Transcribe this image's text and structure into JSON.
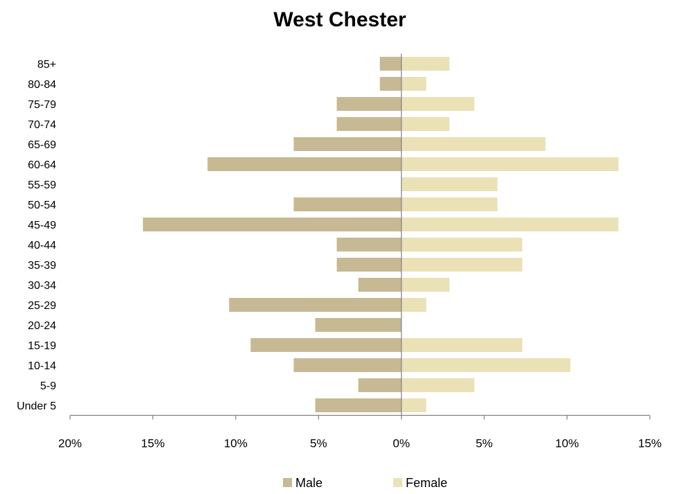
{
  "chart_data": {
    "type": "bar",
    "orientation": "horizontal-population-pyramid",
    "title": "West Chester",
    "categories": [
      "Under 5",
      "5-9",
      "10-14",
      "15-19",
      "20-24",
      "25-29",
      "30-34",
      "35-39",
      "40-44",
      "45-49",
      "50-54",
      "55-59",
      "60-64",
      "65-69",
      "70-74",
      "75-79",
      "80-84",
      "85+"
    ],
    "series": [
      {
        "name": "Male",
        "color": "#c6b994",
        "values": [
          5.2,
          2.6,
          6.5,
          9.1,
          5.2,
          10.4,
          2.6,
          3.9,
          3.9,
          15.6,
          6.5,
          0,
          11.7,
          6.5,
          3.9,
          3.9,
          1.3,
          1.3
        ]
      },
      {
        "name": "Female",
        "color": "#eae1b6",
        "values": [
          1.5,
          4.4,
          10.2,
          7.3,
          0,
          1.5,
          2.9,
          7.3,
          7.3,
          13.1,
          5.8,
          5.8,
          13.1,
          8.7,
          2.9,
          4.4,
          1.5,
          2.9
        ]
      }
    ],
    "xlim": [
      -20,
      15
    ],
    "xticks": [
      -20,
      -15,
      -10,
      -5,
      0,
      5,
      10,
      15
    ],
    "xtick_labels": [
      "20%",
      "15%",
      "10%",
      "5%",
      "0%",
      "5%",
      "10%",
      "15%"
    ],
    "legend_position": "bottom",
    "grid": false
  }
}
